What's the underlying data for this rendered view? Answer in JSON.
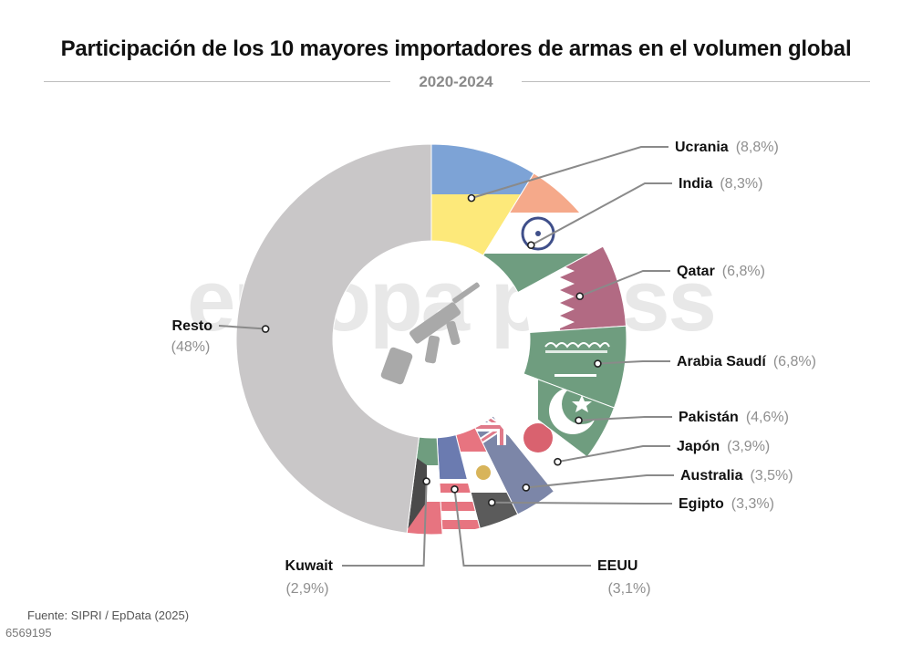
{
  "title": "Participación de los 10 mayores importadores de armas en el volumen global",
  "subtitle": "2020-2024",
  "watermark": "europa press",
  "source": "Fuente: SIPRI / EpData (2025)",
  "image_id": "6569195",
  "chart_data": {
    "type": "pie",
    "variant": "donut",
    "unit": "%",
    "categories": [
      "Ucrania",
      "India",
      "Qatar",
      "Arabia Saudí",
      "Pakistán",
      "Japón",
      "Australia",
      "Egipto",
      "EEUU",
      "Kuwait",
      "Resto"
    ],
    "values": [
      8.8,
      8.3,
      6.8,
      6.8,
      4.6,
      3.9,
      3.5,
      3.3,
      3.1,
      2.9,
      48
    ],
    "value_labels": [
      "(8,8%)",
      "(8,3%)",
      "(6,8%)",
      "(6,8%)",
      "(4,6%)",
      "(3,9%)",
      "(3,5%)",
      "(3,3%)",
      "(3,1%)",
      "(2,9%)",
      "(48%)"
    ],
    "slice_fill": [
      "flag-ukraine",
      "flag-india",
      "flag-qatar",
      "flag-saudi-arabia",
      "flag-pakistan",
      "flag-japan",
      "flag-australia",
      "flag-egypt",
      "flag-usa",
      "flag-kuwait",
      "#c9c7c8"
    ],
    "center_icon": "rifle-icon",
    "legend": "none"
  }
}
